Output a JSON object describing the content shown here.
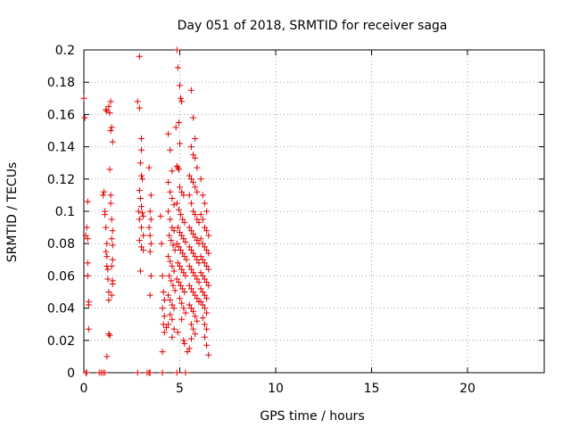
{
  "chart_data": {
    "type": "scatter",
    "title": "Day 051 of 2018, SRMTID for receiver saga",
    "xlabel": "GPS time / hours",
    "ylabel": "SRMTID / TECUs",
    "xlim": [
      0,
      24
    ],
    "ylim": [
      0,
      0.2
    ],
    "x_ticks": [
      0,
      5,
      10,
      15,
      20
    ],
    "x_tick_labels": [
      "0",
      "5",
      "10",
      "15",
      "20"
    ],
    "y_ticks": [
      0,
      0.02,
      0.04,
      0.06,
      0.08,
      0.1,
      0.12,
      0.14,
      0.16,
      0.18,
      0.2
    ],
    "y_tick_labels": [
      "0",
      "0.02",
      "0.04",
      "0.06",
      "0.08",
      "0.1",
      "0.12",
      "0.14",
      "0.16",
      "0.18",
      "0.2"
    ],
    "grid": true,
    "marker": "+",
    "color": "#e00000",
    "series": [
      {
        "name": "SRMTID",
        "points": [
          [
            0.0,
            0.17
          ],
          [
            0.05,
            0.158
          ],
          [
            0.1,
            0.085
          ],
          [
            0.15,
            0.09
          ],
          [
            0.2,
            0.106
          ],
          [
            0.2,
            0.068
          ],
          [
            0.2,
            0.06
          ],
          [
            0.25,
            0.044
          ],
          [
            0.25,
            0.042
          ],
          [
            0.25,
            0.027
          ],
          [
            0.2,
            0.083
          ],
          [
            1.0,
            0.11
          ],
          [
            1.05,
            0.112
          ],
          [
            1.1,
            0.1
          ],
          [
            1.1,
            0.098
          ],
          [
            1.15,
            0.09
          ],
          [
            1.15,
            0.075
          ],
          [
            1.2,
            0.08
          ],
          [
            1.2,
            0.072
          ],
          [
            1.2,
            0.066
          ],
          [
            1.25,
            0.064
          ],
          [
            1.25,
            0.058
          ],
          [
            1.3,
            0.05
          ],
          [
            1.3,
            0.045
          ],
          [
            1.3,
            0.024
          ],
          [
            1.35,
            0.023
          ],
          [
            1.2,
            0.01
          ],
          [
            1.15,
            0.163
          ],
          [
            1.2,
            0.162
          ],
          [
            1.3,
            0.165
          ],
          [
            1.35,
            0.161
          ],
          [
            1.4,
            0.168
          ],
          [
            1.4,
            0.15
          ],
          [
            1.45,
            0.152
          ],
          [
            1.5,
            0.143
          ],
          [
            1.35,
            0.126
          ],
          [
            1.4,
            0.11
          ],
          [
            1.4,
            0.105
          ],
          [
            1.45,
            0.095
          ],
          [
            1.5,
            0.088
          ],
          [
            1.45,
            0.083
          ],
          [
            1.5,
            0.079
          ],
          [
            1.5,
            0.07
          ],
          [
            1.45,
            0.066
          ],
          [
            1.5,
            0.057
          ],
          [
            1.5,
            0.055
          ],
          [
            1.45,
            0.048
          ],
          [
            2.9,
            0.196
          ],
          [
            2.8,
            0.168
          ],
          [
            2.9,
            0.164
          ],
          [
            3.0,
            0.145
          ],
          [
            3.0,
            0.138
          ],
          [
            2.95,
            0.13
          ],
          [
            3.0,
            0.122
          ],
          [
            3.05,
            0.12
          ],
          [
            2.9,
            0.113
          ],
          [
            2.95,
            0.108
          ],
          [
            3.0,
            0.103
          ],
          [
            2.85,
            0.1
          ],
          [
            3.05,
            0.099
          ],
          [
            3.1,
            0.097
          ],
          [
            2.9,
            0.095
          ],
          [
            3.0,
            0.09
          ],
          [
            3.1,
            0.085
          ],
          [
            2.9,
            0.082
          ],
          [
            3.0,
            0.078
          ],
          [
            3.1,
            0.076
          ],
          [
            2.95,
            0.063
          ],
          [
            3.4,
            0.127
          ],
          [
            3.5,
            0.11
          ],
          [
            3.45,
            0.1
          ],
          [
            3.5,
            0.095
          ],
          [
            3.4,
            0.09
          ],
          [
            3.45,
            0.085
          ],
          [
            3.5,
            0.08
          ],
          [
            3.45,
            0.075
          ],
          [
            3.5,
            0.06
          ],
          [
            3.45,
            0.048
          ],
          [
            4.0,
            0.097
          ],
          [
            4.05,
            0.08
          ],
          [
            4.1,
            0.06
          ],
          [
            4.15,
            0.05
          ],
          [
            4.2,
            0.045
          ],
          [
            4.1,
            0.04
          ],
          [
            4.2,
            0.035
          ],
          [
            4.15,
            0.03
          ],
          [
            4.3,
            0.028
          ],
          [
            4.2,
            0.025
          ],
          [
            4.1,
            0.013
          ],
          [
            4.4,
            0.148
          ],
          [
            4.5,
            0.138
          ],
          [
            4.6,
            0.125
          ],
          [
            4.4,
            0.118
          ],
          [
            4.5,
            0.112
          ],
          [
            4.6,
            0.108
          ],
          [
            4.7,
            0.104
          ],
          [
            4.4,
            0.1
          ],
          [
            4.5,
            0.095
          ],
          [
            4.6,
            0.09
          ],
          [
            4.7,
            0.088
          ],
          [
            4.45,
            0.085
          ],
          [
            4.55,
            0.082
          ],
          [
            4.65,
            0.079
          ],
          [
            4.75,
            0.076
          ],
          [
            4.4,
            0.072
          ],
          [
            4.5,
            0.069
          ],
          [
            4.6,
            0.066
          ],
          [
            4.7,
            0.063
          ],
          [
            4.45,
            0.06
          ],
          [
            4.55,
            0.057
          ],
          [
            4.65,
            0.054
          ],
          [
            4.75,
            0.051
          ],
          [
            4.4,
            0.048
          ],
          [
            4.5,
            0.045
          ],
          [
            4.6,
            0.042
          ],
          [
            4.7,
            0.04
          ],
          [
            4.5,
            0.036
          ],
          [
            4.6,
            0.033
          ],
          [
            4.4,
            0.03
          ],
          [
            4.7,
            0.027
          ],
          [
            4.6,
            0.022
          ],
          [
            4.85,
            0.2
          ],
          [
            4.9,
            0.189
          ],
          [
            5.0,
            0.178
          ],
          [
            5.05,
            0.17
          ],
          [
            5.1,
            0.168
          ],
          [
            4.95,
            0.155
          ],
          [
            4.8,
            0.152
          ],
          [
            5.0,
            0.142
          ],
          [
            4.85,
            0.128
          ],
          [
            4.9,
            0.127
          ],
          [
            4.95,
            0.126
          ],
          [
            5.0,
            0.115
          ],
          [
            5.1,
            0.112
          ],
          [
            5.2,
            0.11
          ],
          [
            4.85,
            0.105
          ],
          [
            4.95,
            0.101
          ],
          [
            5.05,
            0.098
          ],
          [
            5.15,
            0.095
          ],
          [
            5.25,
            0.093
          ],
          [
            4.9,
            0.09
          ],
          [
            5.0,
            0.087
          ],
          [
            5.1,
            0.085
          ],
          [
            5.2,
            0.083
          ],
          [
            5.3,
            0.081
          ],
          [
            4.85,
            0.08
          ],
          [
            4.95,
            0.078
          ],
          [
            5.05,
            0.076
          ],
          [
            5.15,
            0.074
          ],
          [
            5.25,
            0.072
          ],
          [
            5.35,
            0.07
          ],
          [
            4.9,
            0.068
          ],
          [
            5.0,
            0.066
          ],
          [
            5.1,
            0.064
          ],
          [
            5.2,
            0.062
          ],
          [
            5.3,
            0.06
          ],
          [
            4.85,
            0.058
          ],
          [
            4.95,
            0.056
          ],
          [
            5.05,
            0.054
          ],
          [
            5.15,
            0.052
          ],
          [
            5.25,
            0.05
          ],
          [
            5.0,
            0.046
          ],
          [
            5.1,
            0.043
          ],
          [
            5.2,
            0.04
          ],
          [
            5.3,
            0.037
          ],
          [
            5.1,
            0.033
          ],
          [
            4.9,
            0.025
          ],
          [
            5.2,
            0.02
          ],
          [
            5.25,
            0.018
          ],
          [
            5.6,
            0.175
          ],
          [
            5.7,
            0.158
          ],
          [
            5.8,
            0.145
          ],
          [
            5.6,
            0.14
          ],
          [
            5.7,
            0.135
          ],
          [
            5.8,
            0.133
          ],
          [
            5.9,
            0.127
          ],
          [
            5.5,
            0.122
          ],
          [
            5.6,
            0.12
          ],
          [
            5.7,
            0.118
          ],
          [
            5.8,
            0.115
          ],
          [
            5.9,
            0.112
          ],
          [
            5.5,
            0.11
          ],
          [
            5.6,
            0.105
          ],
          [
            5.7,
            0.1
          ],
          [
            5.8,
            0.098
          ],
          [
            5.9,
            0.095
          ],
          [
            6.0,
            0.093
          ],
          [
            5.5,
            0.09
          ],
          [
            5.6,
            0.088
          ],
          [
            5.7,
            0.086
          ],
          [
            5.8,
            0.084
          ],
          [
            5.9,
            0.082
          ],
          [
            6.0,
            0.08
          ],
          [
            5.5,
            0.078
          ],
          [
            5.6,
            0.076
          ],
          [
            5.7,
            0.074
          ],
          [
            5.8,
            0.072
          ],
          [
            5.9,
            0.07
          ],
          [
            6.0,
            0.068
          ],
          [
            5.5,
            0.066
          ],
          [
            5.6,
            0.064
          ],
          [
            5.7,
            0.062
          ],
          [
            5.8,
            0.06
          ],
          [
            5.9,
            0.058
          ],
          [
            6.0,
            0.056
          ],
          [
            5.5,
            0.054
          ],
          [
            5.6,
            0.052
          ],
          [
            5.7,
            0.05
          ],
          [
            5.8,
            0.048
          ],
          [
            5.9,
            0.046
          ],
          [
            6.0,
            0.044
          ],
          [
            5.5,
            0.042
          ],
          [
            5.6,
            0.04
          ],
          [
            5.7,
            0.038
          ],
          [
            5.8,
            0.035
          ],
          [
            5.9,
            0.032
          ],
          [
            5.6,
            0.03
          ],
          [
            5.7,
            0.027
          ],
          [
            5.8,
            0.024
          ],
          [
            5.6,
            0.021
          ],
          [
            5.5,
            0.015
          ],
          [
            5.4,
            0.013
          ],
          [
            6.1,
            0.12
          ],
          [
            6.2,
            0.11
          ],
          [
            6.3,
            0.105
          ],
          [
            6.4,
            0.1
          ],
          [
            6.1,
            0.098
          ],
          [
            6.2,
            0.095
          ],
          [
            6.3,
            0.09
          ],
          [
            6.4,
            0.088
          ],
          [
            6.5,
            0.085
          ],
          [
            6.1,
            0.083
          ],
          [
            6.2,
            0.08
          ],
          [
            6.3,
            0.078
          ],
          [
            6.4,
            0.076
          ],
          [
            6.5,
            0.074
          ],
          [
            6.1,
            0.072
          ],
          [
            6.2,
            0.07
          ],
          [
            6.3,
            0.068
          ],
          [
            6.4,
            0.066
          ],
          [
            6.5,
            0.064
          ],
          [
            6.1,
            0.062
          ],
          [
            6.2,
            0.06
          ],
          [
            6.3,
            0.058
          ],
          [
            6.4,
            0.056
          ],
          [
            6.5,
            0.054
          ],
          [
            6.1,
            0.052
          ],
          [
            6.2,
            0.05
          ],
          [
            6.3,
            0.048
          ],
          [
            6.4,
            0.046
          ],
          [
            6.1,
            0.044
          ],
          [
            6.2,
            0.042
          ],
          [
            6.3,
            0.04
          ],
          [
            6.4,
            0.037
          ],
          [
            6.2,
            0.034
          ],
          [
            6.3,
            0.03
          ],
          [
            6.4,
            0.027
          ],
          [
            6.3,
            0.022
          ],
          [
            6.4,
            0.017
          ],
          [
            6.5,
            0.011
          ],
          [
            0.1,
            0
          ],
          [
            0.15,
            0
          ],
          [
            0.8,
            0
          ],
          [
            0.9,
            0
          ],
          [
            1.0,
            0
          ],
          [
            1.1,
            0
          ],
          [
            2.8,
            0
          ],
          [
            3.3,
            0
          ],
          [
            3.4,
            0
          ],
          [
            3.45,
            0
          ],
          [
            4.1,
            0
          ],
          [
            4.85,
            0
          ],
          [
            5.3,
            0
          ]
        ]
      }
    ]
  }
}
